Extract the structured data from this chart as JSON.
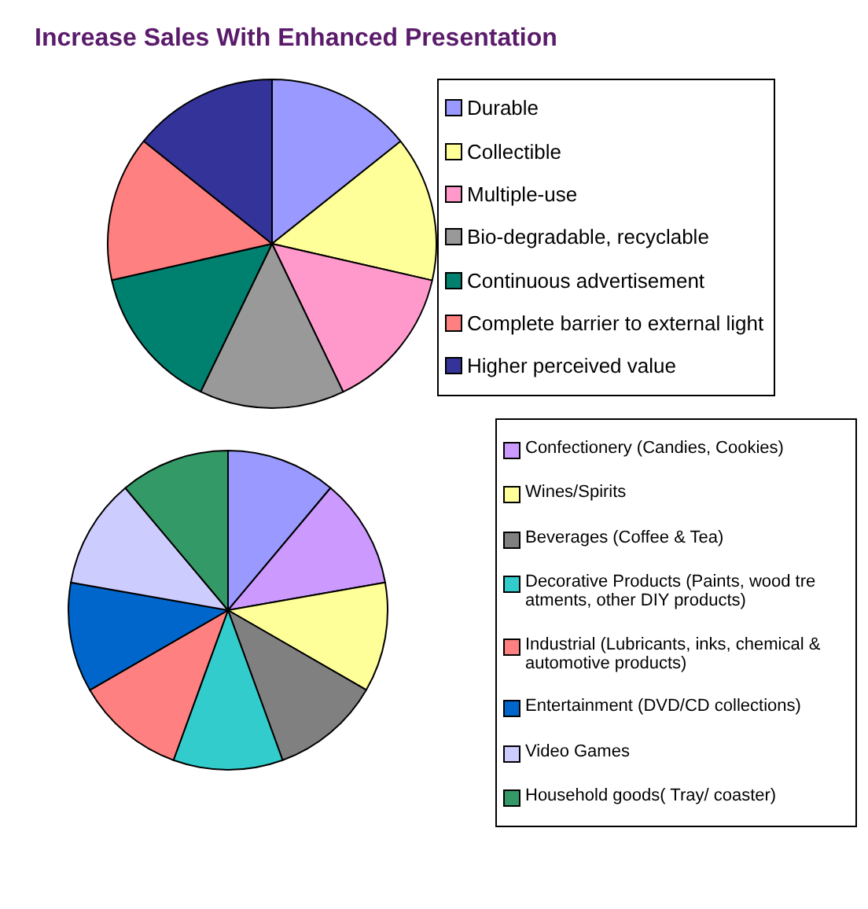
{
  "chart_data": [
    {
      "type": "pie",
      "title": "Increase Sales With Enhanced Presentation",
      "categories": [
        "Durable",
        "Collectible",
        "Multiple-use",
        "Bio-degradable, recyclable",
        "Continuous advertisement",
        "Complete barrier to external light",
        "Higher perceived value"
      ],
      "values": [
        14.29,
        14.29,
        14.29,
        14.29,
        14.29,
        14.29,
        14.26
      ],
      "colors": [
        "#9999ff",
        "#ffff99",
        "#ff99cc",
        "#999999",
        "#00806f",
        "#ff8080",
        "#333399"
      ],
      "legend": "right"
    },
    {
      "type": "pie",
      "categories": [
        null,
        "Confectionery (Candies, Cookies)",
        "Wines/Spirits",
        "Beverages (Coffee & Tea)",
        "Decorative Products (Paints, wood tre atments, other DIY products)",
        "Industrial (Lubricants, inks, chemical & automotive products)",
        "Entertainment (DVD/CD collections)",
        "Video Games",
        "Household goods( Tray/ coaster)"
      ],
      "values": [
        11.11,
        11.11,
        11.11,
        11.11,
        11.11,
        11.11,
        11.11,
        11.11,
        11.12
      ],
      "colors": [
        "#9999ff",
        "#cc99ff",
        "#ffff99",
        "#808080",
        "#33cccc",
        "#ff8080",
        "#0066cc",
        "#ccccff",
        "#339966"
      ],
      "legend": "right"
    }
  ]
}
